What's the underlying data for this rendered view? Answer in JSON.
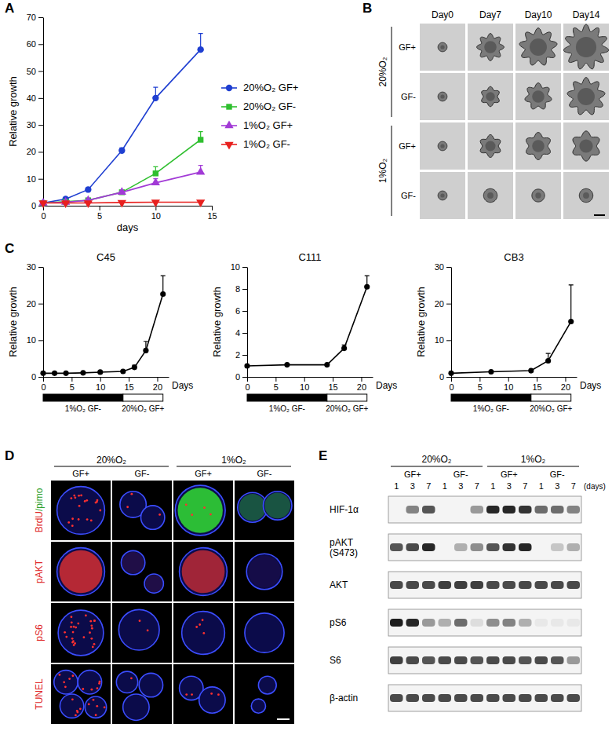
{
  "panel_labels": [
    "A",
    "B",
    "C",
    "D",
    "E"
  ],
  "chart_data": [
    {
      "type": "line",
      "xlabel": "days",
      "ylabel": "Relative growth",
      "xlim": [
        0,
        15
      ],
      "xticks": [
        0,
        5,
        10,
        15
      ],
      "ylim": [
        0,
        70
      ],
      "yticks": [
        0,
        10,
        20,
        30,
        40,
        50,
        60,
        70
      ],
      "legend": "right",
      "x": [
        0,
        2,
        4,
        7,
        10,
        14
      ],
      "series": [
        {
          "name": "20%O₂ GF+",
          "color": "#1f3fd1",
          "marker": "circle",
          "values": [
            1,
            2.5,
            6,
            20.5,
            40,
            58
          ],
          "errors": [
            0.1,
            0.3,
            0.6,
            1,
            4,
            6
          ]
        },
        {
          "name": "20%O₂ GF-",
          "color": "#2fbf2f",
          "marker": "square",
          "values": [
            1,
            1.5,
            2,
            5,
            12,
            24.5
          ],
          "errors": [
            0.1,
            0.2,
            0.3,
            0.6,
            2.5,
            3
          ]
        },
        {
          "name": "1%O₂ GF+",
          "color": "#a23ad6",
          "marker": "triangle-up",
          "values": [
            1,
            1.3,
            2,
            5,
            8.5,
            12.5
          ],
          "errors": [
            0.1,
            0.1,
            0.3,
            0.5,
            1.5,
            2.5
          ]
        },
        {
          "name": "1%O₂ GF-",
          "color": "#e8201e",
          "marker": "triangle-down",
          "values": [
            1,
            1,
            1,
            1.2,
            1.3,
            1.3
          ],
          "errors": [
            0.1,
            0.1,
            0.1,
            0.1,
            0.2,
            0.2
          ]
        }
      ]
    },
    {
      "type": "line",
      "title": "C45",
      "xlabel": "Days",
      "ylabel": "Relative growth",
      "xlim": [
        0,
        22
      ],
      "xticks": [
        0,
        5,
        10,
        15,
        20
      ],
      "ylim": [
        0,
        30
      ],
      "yticks": [
        0,
        10,
        20,
        30
      ],
      "x": [
        0,
        2,
        4,
        7,
        10,
        14,
        16,
        18,
        21
      ],
      "series": [
        {
          "color": "#000000",
          "marker": "circle",
          "values": [
            1,
            1,
            1,
            1.1,
            1.3,
            1.5,
            2.6,
            7.2,
            22.6
          ],
          "errors": [
            0,
            0,
            0,
            0,
            0,
            0.3,
            0.6,
            2.5,
            5
          ]
        }
      ],
      "phases": [
        {
          "label": "1%O₂ GF-",
          "start": 0,
          "end": 14,
          "color": "#000000"
        },
        {
          "label": "20%O₂ GF+",
          "start": 14,
          "end": 21,
          "color": "#ffffff"
        }
      ]
    },
    {
      "type": "line",
      "title": "C111",
      "xlabel": "Days",
      "ylabel": "Relative growth",
      "xlim": [
        0,
        22
      ],
      "xticks": [
        0,
        5,
        10,
        15,
        20
      ],
      "ylim": [
        0,
        10
      ],
      "yticks": [
        0,
        2,
        4,
        6,
        8,
        10
      ],
      "x": [
        0,
        7,
        14,
        17,
        21
      ],
      "series": [
        {
          "color": "#000000",
          "marker": "circle",
          "values": [
            1,
            1.1,
            1.1,
            2.6,
            8.2
          ],
          "errors": [
            0,
            0,
            0,
            0.3,
            1
          ]
        }
      ],
      "phases": [
        {
          "label": "1%O₂ GF-",
          "start": 0,
          "end": 14,
          "color": "#000000"
        },
        {
          "label": "20%O₂ GF+",
          "start": 14,
          "end": 21,
          "color": "#ffffff"
        }
      ]
    },
    {
      "type": "line",
      "title": "CB3",
      "xlabel": "Days",
      "ylabel": "Relative growth",
      "xlim": [
        0,
        22
      ],
      "xticks": [
        0,
        5,
        10,
        15,
        20
      ],
      "ylim": [
        0,
        30
      ],
      "yticks": [
        0,
        10,
        20,
        30
      ],
      "x": [
        0,
        7,
        14,
        17,
        21
      ],
      "series": [
        {
          "color": "#000000",
          "marker": "circle",
          "values": [
            1,
            1.4,
            1.7,
            4.4,
            15.1
          ],
          "errors": [
            0,
            0,
            0,
            2,
            10
          ]
        }
      ],
      "phases": [
        {
          "label": "1%O₂ GF-",
          "start": 0,
          "end": 14,
          "color": "#000000"
        },
        {
          "label": "20%O₂ GF+",
          "start": 14,
          "end": 21,
          "color": "#ffffff"
        }
      ]
    }
  ],
  "panel_b": {
    "columns": [
      "Day0",
      "Day7",
      "Day10",
      "Day14"
    ],
    "groups": [
      {
        "label": "20%O₂",
        "rows": [
          "GF+",
          "GF-"
        ]
      },
      {
        "label": "1%O₂",
        "rows": [
          "GF+",
          "GF-"
        ]
      }
    ]
  },
  "panel_d": {
    "groups": [
      {
        "label": "20%O₂",
        "columns": [
          "GF+",
          "GF-"
        ]
      },
      {
        "label": "1%O₂",
        "columns": [
          "GF+",
          "GF-"
        ]
      }
    ],
    "rows": [
      {
        "parts": [
          {
            "text": "BrdU",
            "color": "#e02828"
          },
          {
            "text": "/pimo",
            "color": "#2ca02c"
          }
        ]
      },
      {
        "parts": [
          {
            "text": "pAKT",
            "color": "#e02828"
          }
        ]
      },
      {
        "parts": [
          {
            "text": "pS6",
            "color": "#e02828"
          }
        ]
      },
      {
        "parts": [
          {
            "text": "TUNEL",
            "color": "#e02828"
          }
        ]
      }
    ]
  },
  "panel_e": {
    "groups": [
      {
        "label": "20%O₂",
        "columns": [
          "GF+",
          "GF-"
        ]
      },
      {
        "label": "1%O₂",
        "columns": [
          "GF+",
          "GF-"
        ]
      }
    ],
    "days": [
      1,
      3,
      7
    ],
    "days_unit": "(days)",
    "rows": [
      {
        "label": [
          "HIF-1α"
        ],
        "intensities": [
          0,
          0.5,
          0.7,
          0,
          0,
          0.4,
          0.9,
          0.9,
          0.85,
          0.6,
          0.6,
          0.5
        ]
      },
      {
        "label": [
          "pAKT",
          "(S473)"
        ],
        "intensities": [
          0.7,
          0.75,
          0.9,
          0,
          0.3,
          0.45,
          0.7,
          0.85,
          0.9,
          0,
          0.2,
          0.3
        ]
      },
      {
        "label": [
          "AKT"
        ],
        "intensities": [
          0.75,
          0.75,
          0.75,
          0.8,
          0.8,
          0.8,
          0.75,
          0.75,
          0.75,
          0.75,
          0.75,
          0.75
        ]
      },
      {
        "label": [
          "pS6"
        ],
        "intensities": [
          0.95,
          0.9,
          0.4,
          0.3,
          0.6,
          0.1,
          0.45,
          0.5,
          0.3,
          0.05,
          0.05,
          0.05
        ]
      },
      {
        "label": [
          "S6"
        ],
        "intensities": [
          0.8,
          0.75,
          0.7,
          0.75,
          0.75,
          0.7,
          0.75,
          0.75,
          0.7,
          0.75,
          0.7,
          0.4
        ]
      },
      {
        "label": [
          "β-actin"
        ],
        "intensities": [
          0.75,
          0.75,
          0.75,
          0.75,
          0.75,
          0.75,
          0.75,
          0.75,
          0.75,
          0.75,
          0.75,
          0.75
        ]
      }
    ]
  }
}
